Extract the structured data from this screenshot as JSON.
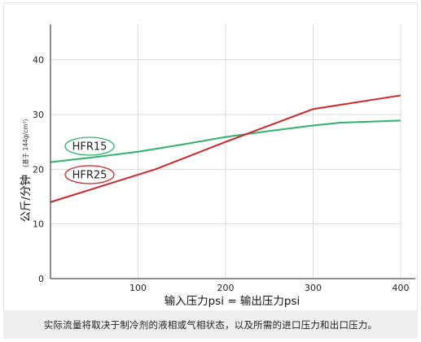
{
  "chart_data": {
    "type": "line",
    "xlabel": "输入压力psi = 输出压力psi",
    "ylabel": "公斤/分钟",
    "ylabel_note": "(基于 144g/cm³)",
    "xlim": [
      0,
      400
    ],
    "ylim": [
      0,
      45
    ],
    "xticks": [
      100,
      200,
      300,
      400
    ],
    "yticks": [
      0,
      10,
      20,
      30,
      40
    ],
    "grid": true,
    "series": [
      {
        "name": "HFR15",
        "color": "#2db36b",
        "x": [
          0,
          50,
          100,
          150,
          200,
          250,
          300,
          330,
          400
        ],
        "y": [
          21.3,
          22.2,
          23.2,
          24.5,
          25.9,
          27.0,
          28.0,
          28.5,
          28.9
        ]
      },
      {
        "name": "HFR25",
        "color": "#d1232a",
        "x": [
          0,
          50,
          100,
          120,
          200,
          250,
          300,
          400
        ],
        "y": [
          14.0,
          16.5,
          19.0,
          20.0,
          25.0,
          28.0,
          31.0,
          33.5
        ]
      }
    ]
  },
  "caption": "实际流量将取决于制冷剂的液相或气相状态，以及所需的进口压力和出口压力。"
}
